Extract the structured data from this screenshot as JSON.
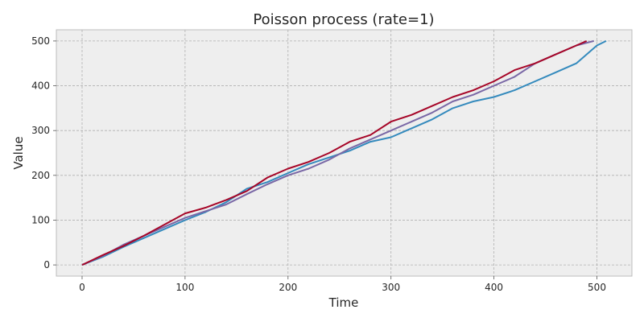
{
  "chart_data": {
    "type": "line",
    "title": "Poisson process (rate=1)",
    "xlabel": "Time",
    "ylabel": "Value",
    "xlim": [
      -25,
      534
    ],
    "ylim": [
      -25,
      525
    ],
    "xticks": [
      0,
      100,
      200,
      300,
      400,
      500
    ],
    "yticks": [
      0,
      100,
      200,
      300,
      400,
      500
    ],
    "grid": true,
    "background": "#eeeeee",
    "series": [
      {
        "color": "#348abd",
        "points": [
          [
            0,
            0
          ],
          [
            20,
            18
          ],
          [
            40,
            40
          ],
          [
            60,
            60
          ],
          [
            80,
            80
          ],
          [
            100,
            100
          ],
          [
            120,
            118
          ],
          [
            140,
            140
          ],
          [
            160,
            170
          ],
          [
            180,
            185
          ],
          [
            200,
            205
          ],
          [
            220,
            225
          ],
          [
            240,
            240
          ],
          [
            260,
            255
          ],
          [
            280,
            275
          ],
          [
            300,
            285
          ],
          [
            320,
            305
          ],
          [
            340,
            325
          ],
          [
            360,
            350
          ],
          [
            380,
            365
          ],
          [
            400,
            375
          ],
          [
            420,
            390
          ],
          [
            440,
            410
          ],
          [
            460,
            430
          ],
          [
            480,
            450
          ],
          [
            500,
            490
          ],
          [
            509,
            500
          ]
        ]
      },
      {
        "color": "#7a68a6",
        "points": [
          [
            0,
            0
          ],
          [
            20,
            20
          ],
          [
            40,
            45
          ],
          [
            60,
            65
          ],
          [
            80,
            85
          ],
          [
            100,
            105
          ],
          [
            120,
            120
          ],
          [
            140,
            135
          ],
          [
            160,
            158
          ],
          [
            180,
            180
          ],
          [
            200,
            200
          ],
          [
            220,
            215
          ],
          [
            240,
            235
          ],
          [
            260,
            260
          ],
          [
            280,
            280
          ],
          [
            300,
            300
          ],
          [
            320,
            320
          ],
          [
            340,
            340
          ],
          [
            360,
            365
          ],
          [
            380,
            380
          ],
          [
            400,
            400
          ],
          [
            420,
            420
          ],
          [
            440,
            450
          ],
          [
            460,
            470
          ],
          [
            480,
            490
          ],
          [
            497,
            500
          ]
        ]
      },
      {
        "color": "#a60628",
        "points": [
          [
            0,
            0
          ],
          [
            20,
            22
          ],
          [
            40,
            42
          ],
          [
            60,
            65
          ],
          [
            80,
            90
          ],
          [
            100,
            115
          ],
          [
            120,
            128
          ],
          [
            140,
            145
          ],
          [
            160,
            165
          ],
          [
            180,
            195
          ],
          [
            200,
            215
          ],
          [
            220,
            230
          ],
          [
            240,
            250
          ],
          [
            260,
            275
          ],
          [
            280,
            290
          ],
          [
            300,
            320
          ],
          [
            320,
            335
          ],
          [
            340,
            355
          ],
          [
            360,
            375
          ],
          [
            380,
            390
          ],
          [
            400,
            410
          ],
          [
            420,
            435
          ],
          [
            440,
            450
          ],
          [
            460,
            470
          ],
          [
            480,
            490
          ],
          [
            490,
            500
          ]
        ]
      }
    ]
  }
}
